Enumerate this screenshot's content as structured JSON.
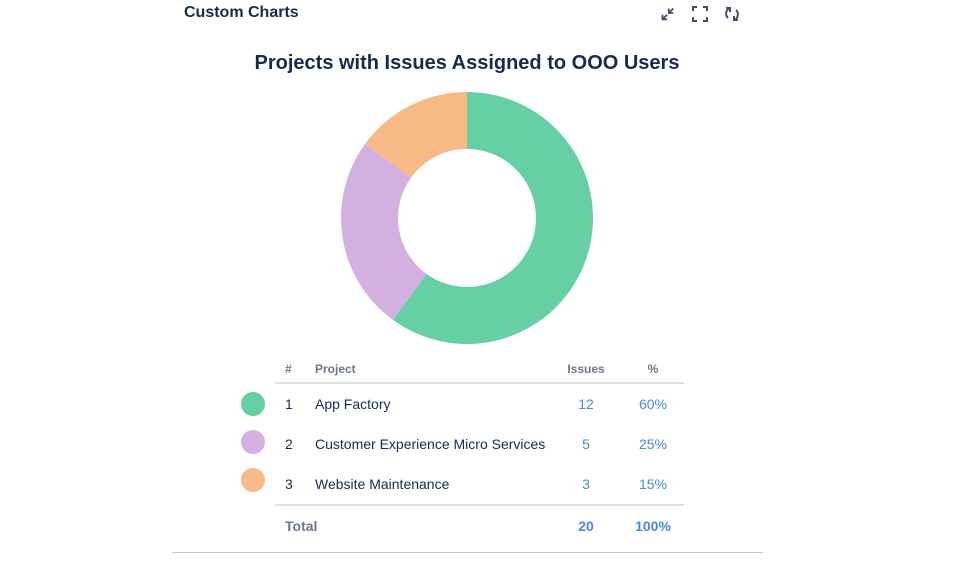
{
  "header": {
    "title": "Custom Charts",
    "icons": [
      "minimize-icon",
      "fullscreen-icon",
      "refresh-icon"
    ]
  },
  "chart_data": {
    "type": "pie",
    "title": "Projects with Issues Assigned to OOO Users",
    "columns": {
      "num": "#",
      "project": "Project",
      "issues": "Issues",
      "pct": "%"
    },
    "rows": [
      {
        "num": "1",
        "label": "App Factory",
        "value": 12,
        "pct": "60%",
        "color": "#66cfa3"
      },
      {
        "num": "2",
        "label": "Customer Experience Micro Services",
        "value": 5,
        "pct": "25%",
        "color": "#d3b0e0"
      },
      {
        "num": "3",
        "label": "Website Maintenance",
        "value": 3,
        "pct": "15%",
        "color": "#f7b985"
      }
    ],
    "total": {
      "label": "Total",
      "value": "20",
      "pct": "100%"
    }
  }
}
